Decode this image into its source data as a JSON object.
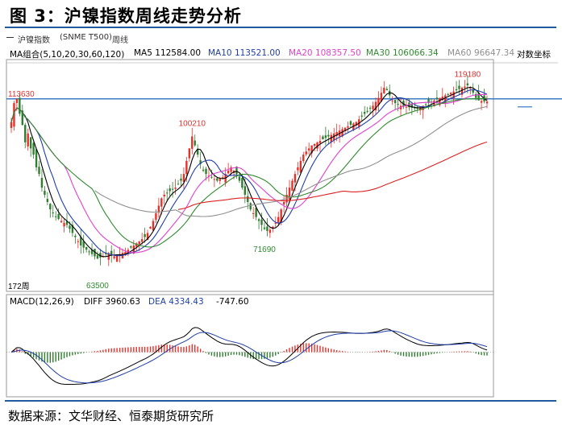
{
  "figure": {
    "title": "图 3：沪镍指数周线走势分析",
    "source": "数据来源：文华财经、恒泰期货研究所"
  },
  "toolbar": {
    "instrument": "沪镍指数",
    "code": "(SNME T500)",
    "period": "周线"
  },
  "legend_top": {
    "group": "MA组合(5,10,20,30,60,120)",
    "ma5": "MA5 112584.00",
    "ma10": "MA10 113521.00",
    "ma20": "MA20 108357.50",
    "ma30": "MA30 106066.34",
    "ma60": "MA60 96647.34",
    "axis_mode": "对数坐标"
  },
  "legend_bottom": {
    "macd": "MACD(12,26,9)",
    "diff": "DIFF 3960.63",
    "dea": "DEA 4334.43",
    "value": "-747.60"
  },
  "colors": {
    "up": "#e8302a",
    "down": "#2f7d2f",
    "ma5": "#000000",
    "ma10": "#1f3ea8",
    "ma20": "#e040d0",
    "ma30": "#2e8b2e",
    "ma60": "#909090",
    "ma120": "#dd2222",
    "hline": "#2a6fc0"
  },
  "annotations": {
    "hline_label": "113630",
    "bars_label": "172周",
    "peak1": "100210",
    "peak2": "119180",
    "low1": "63500",
    "low2": "71690"
  },
  "chart_data": [
    {
      "type": "candlestick",
      "ylim": [
        60000,
        125000
      ],
      "x_count": 172,
      "log_scale": true,
      "hline": 113630,
      "closes": [
        105000,
        112000,
        113630,
        108000,
        104000,
        98000,
        101000,
        96000,
        94000,
        90000,
        88000,
        84000,
        82000,
        80000,
        78000,
        77000,
        76000,
        75500,
        75000,
        74500,
        74000,
        73000,
        72000,
        71000,
        70000,
        69000,
        68500,
        68000,
        67500,
        67000,
        66500,
        66000,
        66200,
        66500,
        67000,
        67200,
        66800,
        66500,
        66700,
        67000,
        67300,
        67500,
        68000,
        68500,
        69000,
        69500,
        70000,
        70500,
        71000,
        72000,
        73500,
        75000,
        77000,
        79000,
        81000,
        82000,
        82500,
        83000,
        83500,
        84000,
        85000,
        86000,
        88000,
        92000,
        96000,
        100000,
        97000,
        94000,
        91000,
        89000,
        88000,
        87500,
        87000,
        86500,
        86000,
        86500,
        87000,
        88000,
        89000,
        90000,
        89000,
        88000,
        86000,
        84000,
        82000,
        80000,
        78000,
        77000,
        76000,
        75000,
        74000,
        73000,
        72500,
        72800,
        73500,
        74500,
        76000,
        78000,
        80000,
        82000,
        84000,
        86000,
        88000,
        90000,
        92000,
        94000,
        95000,
        96000,
        97000,
        97500,
        98000,
        98500,
        99000,
        99500,
        100000,
        100500,
        101000,
        101500,
        102000,
        102500,
        103000,
        103500,
        104000,
        104500,
        105000,
        106000,
        107000,
        108000,
        109000,
        110000,
        111000,
        112500,
        114000,
        116000,
        118000,
        117000,
        115000,
        113000,
        112000,
        111500,
        111000,
        110800,
        110600,
        110400,
        110200,
        110000,
        109800,
        110500,
        111000,
        111500,
        112000,
        112584,
        113000,
        113500,
        114000,
        114500,
        115000,
        115500,
        116000,
        116500,
        117000,
        117500,
        118000,
        118500,
        119000,
        118000,
        116000,
        114000,
        113000,
        112800,
        112600,
        112584
      ],
      "ma_note": "MA5/MA10/MA20/MA30/MA60/MA120 drawn as smoothed moving averages of closes"
    },
    {
      "type": "bar",
      "name": "MACD",
      "diff_last": 3960.63,
      "dea_last": 4334.43,
      "macd_last": -747.6
    }
  ]
}
